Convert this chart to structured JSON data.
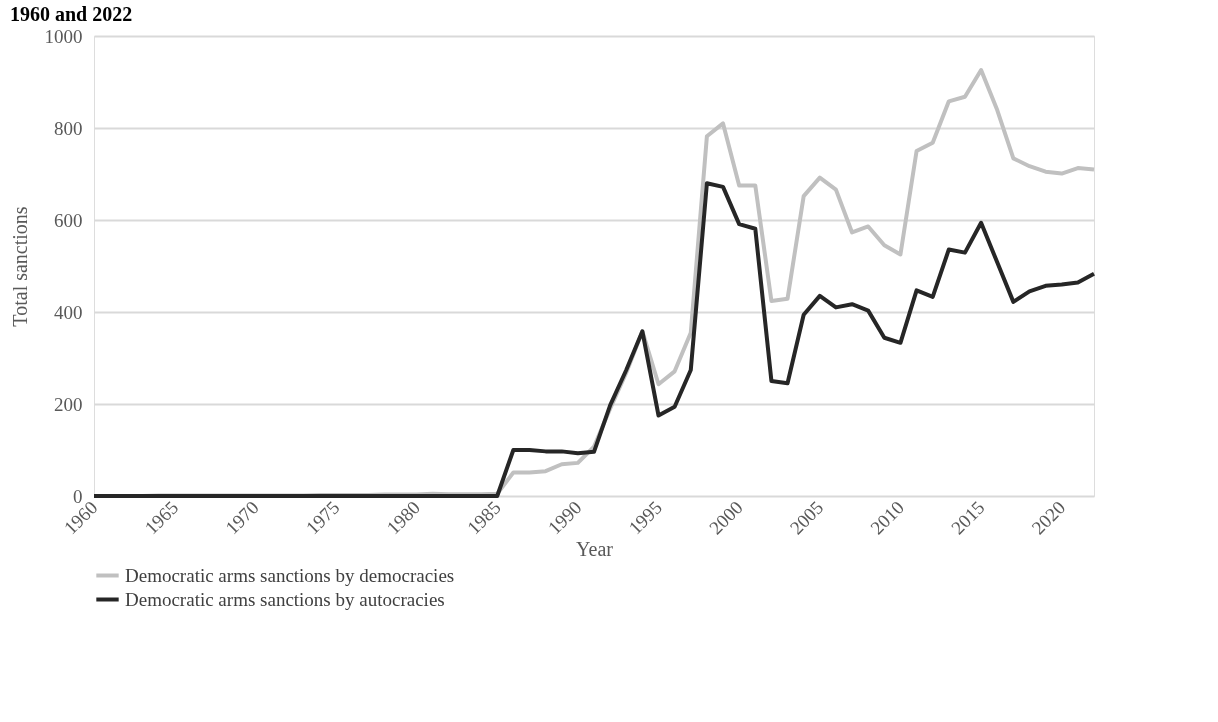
{
  "chart_data": {
    "type": "line",
    "title": "1960 and 2022",
    "xlabel": "Year",
    "ylabel": "Total sanctions",
    "x": [
      1960,
      1961,
      1962,
      1963,
      1964,
      1965,
      1966,
      1967,
      1968,
      1969,
      1970,
      1971,
      1972,
      1973,
      1974,
      1975,
      1976,
      1977,
      1978,
      1979,
      1980,
      1981,
      1982,
      1983,
      1984,
      1985,
      1986,
      1987,
      1988,
      1989,
      1990,
      1991,
      1992,
      1993,
      1994,
      1995,
      1996,
      1997,
      1998,
      1999,
      2000,
      2001,
      2002,
      2003,
      2004,
      2005,
      2006,
      2007,
      2008,
      2009,
      2010,
      2011,
      2012,
      2013,
      2014,
      2015,
      2016,
      2017,
      2018,
      2019,
      2020,
      2021,
      2022
    ],
    "series": [
      {
        "name": "Democratic arms sanctions by democracies",
        "color": "#c0c0c0",
        "values": [
          0,
          0,
          0,
          0,
          1,
          1,
          1,
          1,
          1,
          1,
          1,
          1,
          1,
          1,
          2,
          2,
          2,
          2,
          3,
          3,
          3,
          5,
          4,
          4,
          4,
          5,
          51,
          51,
          54,
          69,
          72,
          107,
          190,
          268,
          358,
          243,
          271,
          355,
          782,
          810,
          675,
          675,
          424,
          429,
          652,
          692,
          666,
          573,
          586,
          545,
          525,
          750,
          768,
          858,
          868,
          926,
          839,
          734,
          717,
          705,
          701,
          713,
          710
        ]
      },
      {
        "name": "Democratic arms sanctions by autocracies",
        "color": "#262626",
        "values": [
          0,
          0,
          0,
          0,
          0,
          0,
          0,
          0,
          0,
          0,
          0,
          0,
          0,
          0,
          0,
          0,
          0,
          0,
          0,
          0,
          0,
          0,
          0,
          0,
          0,
          0,
          100,
          100,
          97,
          97,
          93,
          96,
          197,
          274,
          358,
          175,
          194,
          274,
          680,
          672,
          591,
          581,
          250,
          245,
          394,
          435,
          410,
          417,
          403,
          344,
          333,
          447,
          433,
          536,
          529,
          594,
          508,
          422,
          445,
          457,
          460,
          464,
          483
        ]
      }
    ],
    "xlim": [
      1960,
      2022
    ],
    "xticks": [
      1960,
      1965,
      1970,
      1975,
      1980,
      1985,
      1990,
      1995,
      2000,
      2005,
      2010,
      2015,
      2020
    ],
    "ylim": [
      0,
      1000
    ],
    "yticks": [
      0,
      200,
      400,
      600,
      800,
      1000
    ],
    "grid": "y",
    "legend": "bottom",
    "marker": "none",
    "line_style": "solid"
  }
}
